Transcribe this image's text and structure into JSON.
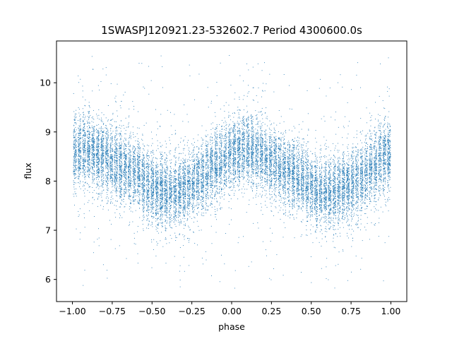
{
  "chart_data": {
    "type": "scatter",
    "title": "1SWASPJ120921.23-532602.7 Period 4300600.0s",
    "xlabel": "phase",
    "ylabel": "flux",
    "xlim": [
      -1.1,
      1.1
    ],
    "ylim": [
      5.55,
      10.85
    ],
    "xticks": [
      -1.0,
      -0.75,
      -0.5,
      -0.25,
      0.0,
      0.25,
      0.5,
      0.75,
      1.0
    ],
    "xtick_labels": [
      "−1.00",
      "−0.75",
      "−0.50",
      "−0.25",
      "0.00",
      "0.25",
      "0.50",
      "0.75",
      "1.00"
    ],
    "yticks": [
      6,
      7,
      8,
      9,
      10
    ],
    "ytick_labels": [
      "6",
      "7",
      "8",
      "9",
      "10"
    ],
    "grid": false,
    "legend": "none",
    "marker_color": "#1f77b4",
    "series": [
      {
        "phase_profile": {
          "x": [
            -1.0,
            -0.9,
            -0.8,
            -0.7,
            -0.6,
            -0.5,
            -0.4,
            -0.3,
            -0.2,
            -0.1,
            0.0,
            0.1,
            0.2,
            0.3,
            0.4,
            0.5,
            0.6,
            0.7,
            0.8,
            0.9,
            1.0
          ],
          "median_flux": [
            8.6,
            8.65,
            8.5,
            8.3,
            8.15,
            7.85,
            7.75,
            7.85,
            8.05,
            8.35,
            8.6,
            8.65,
            8.5,
            8.3,
            8.15,
            7.85,
            7.75,
            7.85,
            8.05,
            8.35,
            8.6
          ],
          "spread": 0.35
        },
        "point_count": 16000,
        "outlier_range": [
          5.8,
          10.6
        ]
      }
    ]
  }
}
